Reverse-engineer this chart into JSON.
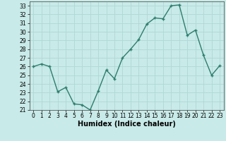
{
  "x": [
    0,
    1,
    2,
    3,
    4,
    5,
    6,
    7,
    8,
    9,
    10,
    11,
    12,
    13,
    14,
    15,
    16,
    17,
    18,
    19,
    20,
    21,
    22,
    23
  ],
  "y": [
    26.0,
    26.3,
    26.0,
    23.1,
    23.6,
    21.7,
    21.6,
    21.0,
    23.2,
    25.6,
    24.6,
    27.0,
    28.0,
    29.1,
    30.9,
    31.6,
    31.5,
    33.0,
    33.1,
    29.6,
    30.2,
    27.3,
    25.0,
    26.1
  ],
  "line_color": "#2e7d6e",
  "marker": "+",
  "bg_color": "#c8eae8",
  "grid_color": "#b0d8d4",
  "xlabel": "Humidex (Indice chaleur)",
  "ylim": [
    21,
    33.5
  ],
  "yticks": [
    21,
    22,
    23,
    24,
    25,
    26,
    27,
    28,
    29,
    30,
    31,
    32,
    33
  ],
  "xticks": [
    0,
    1,
    2,
    3,
    4,
    5,
    6,
    7,
    8,
    9,
    10,
    11,
    12,
    13,
    14,
    15,
    16,
    17,
    18,
    19,
    20,
    21,
    22,
    23
  ],
  "xlim": [
    -0.5,
    23.5
  ],
  "tick_fontsize": 5.5,
  "xlabel_fontsize": 7.0,
  "linewidth": 1.0,
  "markersize": 3.5
}
